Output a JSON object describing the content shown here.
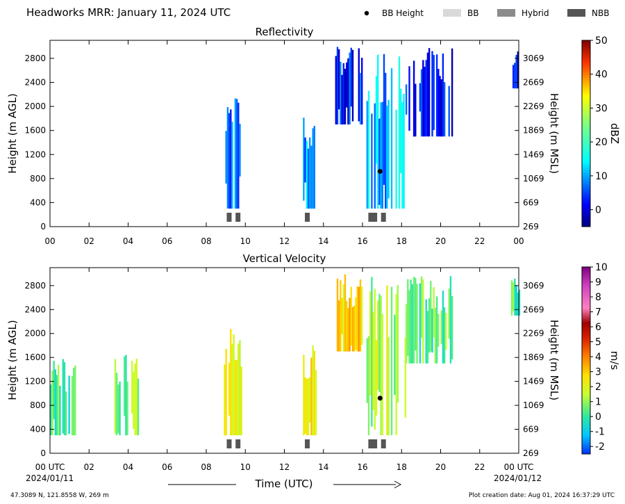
{
  "header": {
    "title": "Headworks MRR:  January 11, 2024 UTC",
    "legend": [
      {
        "label": "BB Height",
        "symbol": "dot",
        "color": "#000000"
      },
      {
        "label": "BB",
        "symbol": "box",
        "color": "#d9d9d9"
      },
      {
        "label": "Hybrid",
        "symbol": "box",
        "color": "#8c8c8c"
      },
      {
        "label": "NBB",
        "symbol": "box",
        "color": "#555555"
      }
    ]
  },
  "footer": {
    "location": "47.3089 N, 121.8558 W, 269 m",
    "created": "Plot creation date: Aug 01, 2024 16:37:29 UTC",
    "xlabel": "Time (UTC)",
    "start_date": "2024/01/11",
    "end_date": "2024/01/12"
  },
  "chart_data": [
    {
      "type": "heatmap",
      "title": "Reflectivity",
      "xlabel": "",
      "ylabel": "Height (m AGL)",
      "ylabel_right": "Height (m MSL)",
      "x_ticks": [
        "00",
        "02",
        "04",
        "06",
        "08",
        "10",
        "12",
        "14",
        "16",
        "18",
        "20",
        "22",
        "00"
      ],
      "xlim": [
        0,
        24
      ],
      "ylim": [
        0,
        3100
      ],
      "y_ticks": [
        0,
        400,
        800,
        1200,
        1600,
        2000,
        2400,
        2800
      ],
      "y_ticks_right": [
        "269",
        "669",
        "1069",
        "1469",
        "1869",
        "2269",
        "2669",
        "3069"
      ],
      "colorbar": {
        "label": "dBZ",
        "range": [
          -5,
          50
        ],
        "ticks": [
          "0",
          "10",
          "20",
          "30",
          "40",
          "50"
        ],
        "colormap": "jet"
      },
      "precip_blocks": [
        {
          "t0": 8.9,
          "t1": 9.7,
          "z0": 300,
          "z1": 2200,
          "value": 8
        },
        {
          "t0": 12.95,
          "t1": 13.5,
          "z0": 300,
          "z1": 1900,
          "value": 9
        },
        {
          "t0": 16.2,
          "t1": 18.1,
          "z0": 300,
          "z1": 3000,
          "value": 11
        },
        {
          "t0": 14.6,
          "t1": 16.0,
          "z0": 1700,
          "z1": 3000,
          "value": 3
        },
        {
          "t0": 18.2,
          "t1": 20.6,
          "z0": 1500,
          "z1": 3000,
          "value": 1
        },
        {
          "t0": 23.6,
          "t1": 24.0,
          "z0": 2300,
          "z1": 3000,
          "value": 2
        }
      ],
      "bb_height": [
        {
          "t": 16.9,
          "z": 920
        }
      ],
      "bb_type": [
        {
          "t0": 9.05,
          "t1": 9.3,
          "kind": "NBB"
        },
        {
          "t0": 9.5,
          "t1": 9.75,
          "kind": "NBB"
        },
        {
          "t0": 13.05,
          "t1": 13.3,
          "kind": "NBB"
        },
        {
          "t0": 16.3,
          "t1": 16.75,
          "kind": "NBB"
        },
        {
          "t0": 16.95,
          "t1": 17.2,
          "kind": "NBB"
        }
      ]
    },
    {
      "type": "heatmap",
      "title": "Vertical Velocity",
      "xlabel": "Time (UTC)",
      "ylabel": "Height (m AGL)",
      "ylabel_right": "Height (m MSL)",
      "x_ticks": [
        "00 UTC",
        "02",
        "04",
        "06",
        "08",
        "10",
        "12",
        "14",
        "16",
        "18",
        "20",
        "22",
        "00 UTC"
      ],
      "xlim": [
        0,
        24
      ],
      "ylim": [
        0,
        3100
      ],
      "y_ticks": [
        0,
        400,
        800,
        1200,
        1600,
        2000,
        2400,
        2800
      ],
      "y_ticks_right": [
        "269",
        "669",
        "1069",
        "1469",
        "1869",
        "2269",
        "2669",
        "3069"
      ],
      "colorbar": {
        "label": "m/s",
        "range": [
          -2.5,
          10
        ],
        "ticks": [
          "-2",
          "-1",
          "0",
          "1",
          "2",
          "3",
          "4",
          "5",
          "6",
          "7",
          "8",
          "9",
          "10"
        ],
        "colormap": "velocity"
      },
      "precip_blocks": [
        {
          "t0": 0.0,
          "t1": 1.3,
          "z0": 300,
          "z1": 1600,
          "value": 0.3
        },
        {
          "t0": 3.3,
          "t1": 4.5,
          "z0": 300,
          "z1": 1700,
          "value": 0.8
        },
        {
          "t0": 8.9,
          "t1": 9.8,
          "z0": 300,
          "z1": 2200,
          "value": 2.0
        },
        {
          "t0": 12.95,
          "t1": 13.6,
          "z0": 300,
          "z1": 1900,
          "value": 2.6
        },
        {
          "t0": 14.6,
          "t1": 16.0,
          "z0": 1700,
          "z1": 3000,
          "value": 2.8
        },
        {
          "t0": 16.2,
          "t1": 18.2,
          "z0": 300,
          "z1": 3000,
          "value": 1.2
        },
        {
          "t0": 18.2,
          "t1": 20.6,
          "z0": 1500,
          "z1": 3000,
          "value": 0.5
        },
        {
          "t0": 23.6,
          "t1": 24.0,
          "z0": 2300,
          "z1": 3000,
          "value": 0.1
        }
      ],
      "bb_height": [
        {
          "t": 16.9,
          "z": 920
        }
      ],
      "bb_type": [
        {
          "t0": 9.05,
          "t1": 9.3,
          "kind": "NBB"
        },
        {
          "t0": 9.5,
          "t1": 9.75,
          "kind": "NBB"
        },
        {
          "t0": 13.05,
          "t1": 13.3,
          "kind": "NBB"
        },
        {
          "t0": 16.3,
          "t1": 16.75,
          "kind": "NBB"
        },
        {
          "t0": 16.95,
          "t1": 17.2,
          "kind": "NBB"
        }
      ]
    }
  ]
}
